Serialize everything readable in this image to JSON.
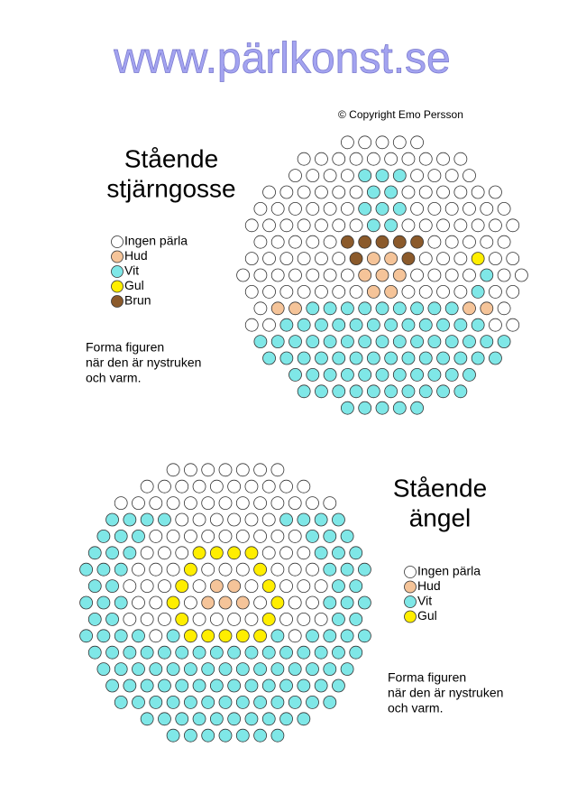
{
  "header": {
    "title": "www.pärlkonst.se",
    "copyright": "© Copyright Emo Persson"
  },
  "patterns": [
    {
      "title": [
        "Stående",
        "stjärngosse"
      ],
      "legend": [
        {
          "label": "Ingen pärla",
          "color": "#ffffff"
        },
        {
          "label": "Hud",
          "color": "#f5c499"
        },
        {
          "label": "Vit",
          "color": "#7fe7e7"
        },
        {
          "label": "Gul",
          "color": "#ffee00"
        },
        {
          "label": "Brun",
          "color": "#8b5a2b"
        }
      ],
      "note": [
        "Forma figuren",
        "när den är nystruken",
        "och varm."
      ]
    },
    {
      "title": [
        "Stående",
        "ängel"
      ],
      "legend": [
        {
          "label": "Ingen pärla",
          "color": "#ffffff"
        },
        {
          "label": "Hud",
          "color": "#f5c499"
        },
        {
          "label": "Vit",
          "color": "#7fe7e7"
        },
        {
          "label": "Gul",
          "color": "#ffee00"
        }
      ],
      "note": [
        "Forma figuren",
        "när den är nystruken",
        "och varm."
      ]
    }
  ]
}
